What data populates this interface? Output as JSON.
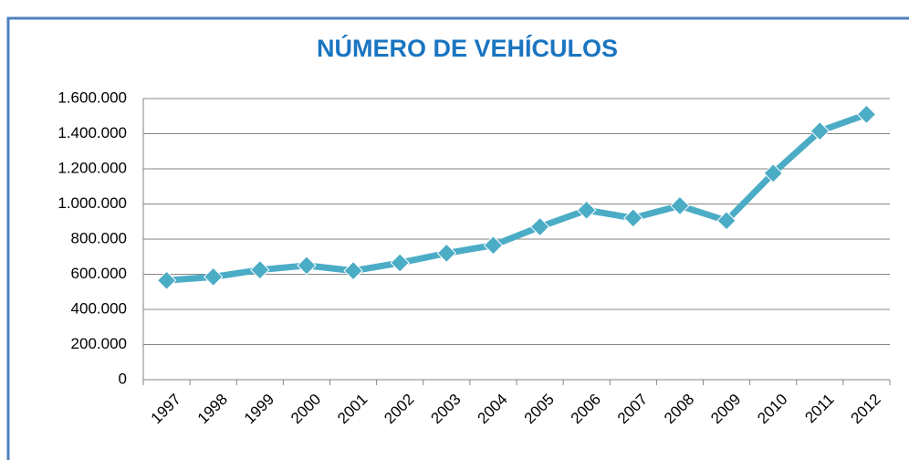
{
  "chart_data": {
    "type": "line",
    "title": "NÚMERO DE VEHÍCULOS",
    "categories": [
      "1997",
      "1998",
      "1999",
      "2000",
      "2001",
      "2002",
      "2003",
      "2004",
      "2005",
      "2006",
      "2007",
      "2008",
      "2009",
      "2010",
      "2011",
      "2012"
    ],
    "values": [
      565000,
      585000,
      625000,
      650000,
      620000,
      665000,
      720000,
      765000,
      870000,
      965000,
      920000,
      990000,
      905000,
      1175000,
      1415000,
      1510000
    ],
    "color": "#4bacc6",
    "ylim": [
      0,
      1600000
    ],
    "yticks": [
      0,
      {
        "value": 200000,
        "label": "200.000"
      },
      {
        "value": 400000,
        "label": "400.000"
      },
      {
        "value": 600000,
        "label": "600.000"
      },
      {
        "value": 800000,
        "label": "800.000"
      },
      {
        "value": 1000000,
        "label": "1.000.000"
      },
      {
        "value": 1200000,
        "label": "1.200.000"
      },
      {
        "value": 1400000,
        "label": "1.400.000"
      },
      {
        "value": 1600000,
        "label": "1.600.000"
      }
    ],
    "grid": true
  }
}
